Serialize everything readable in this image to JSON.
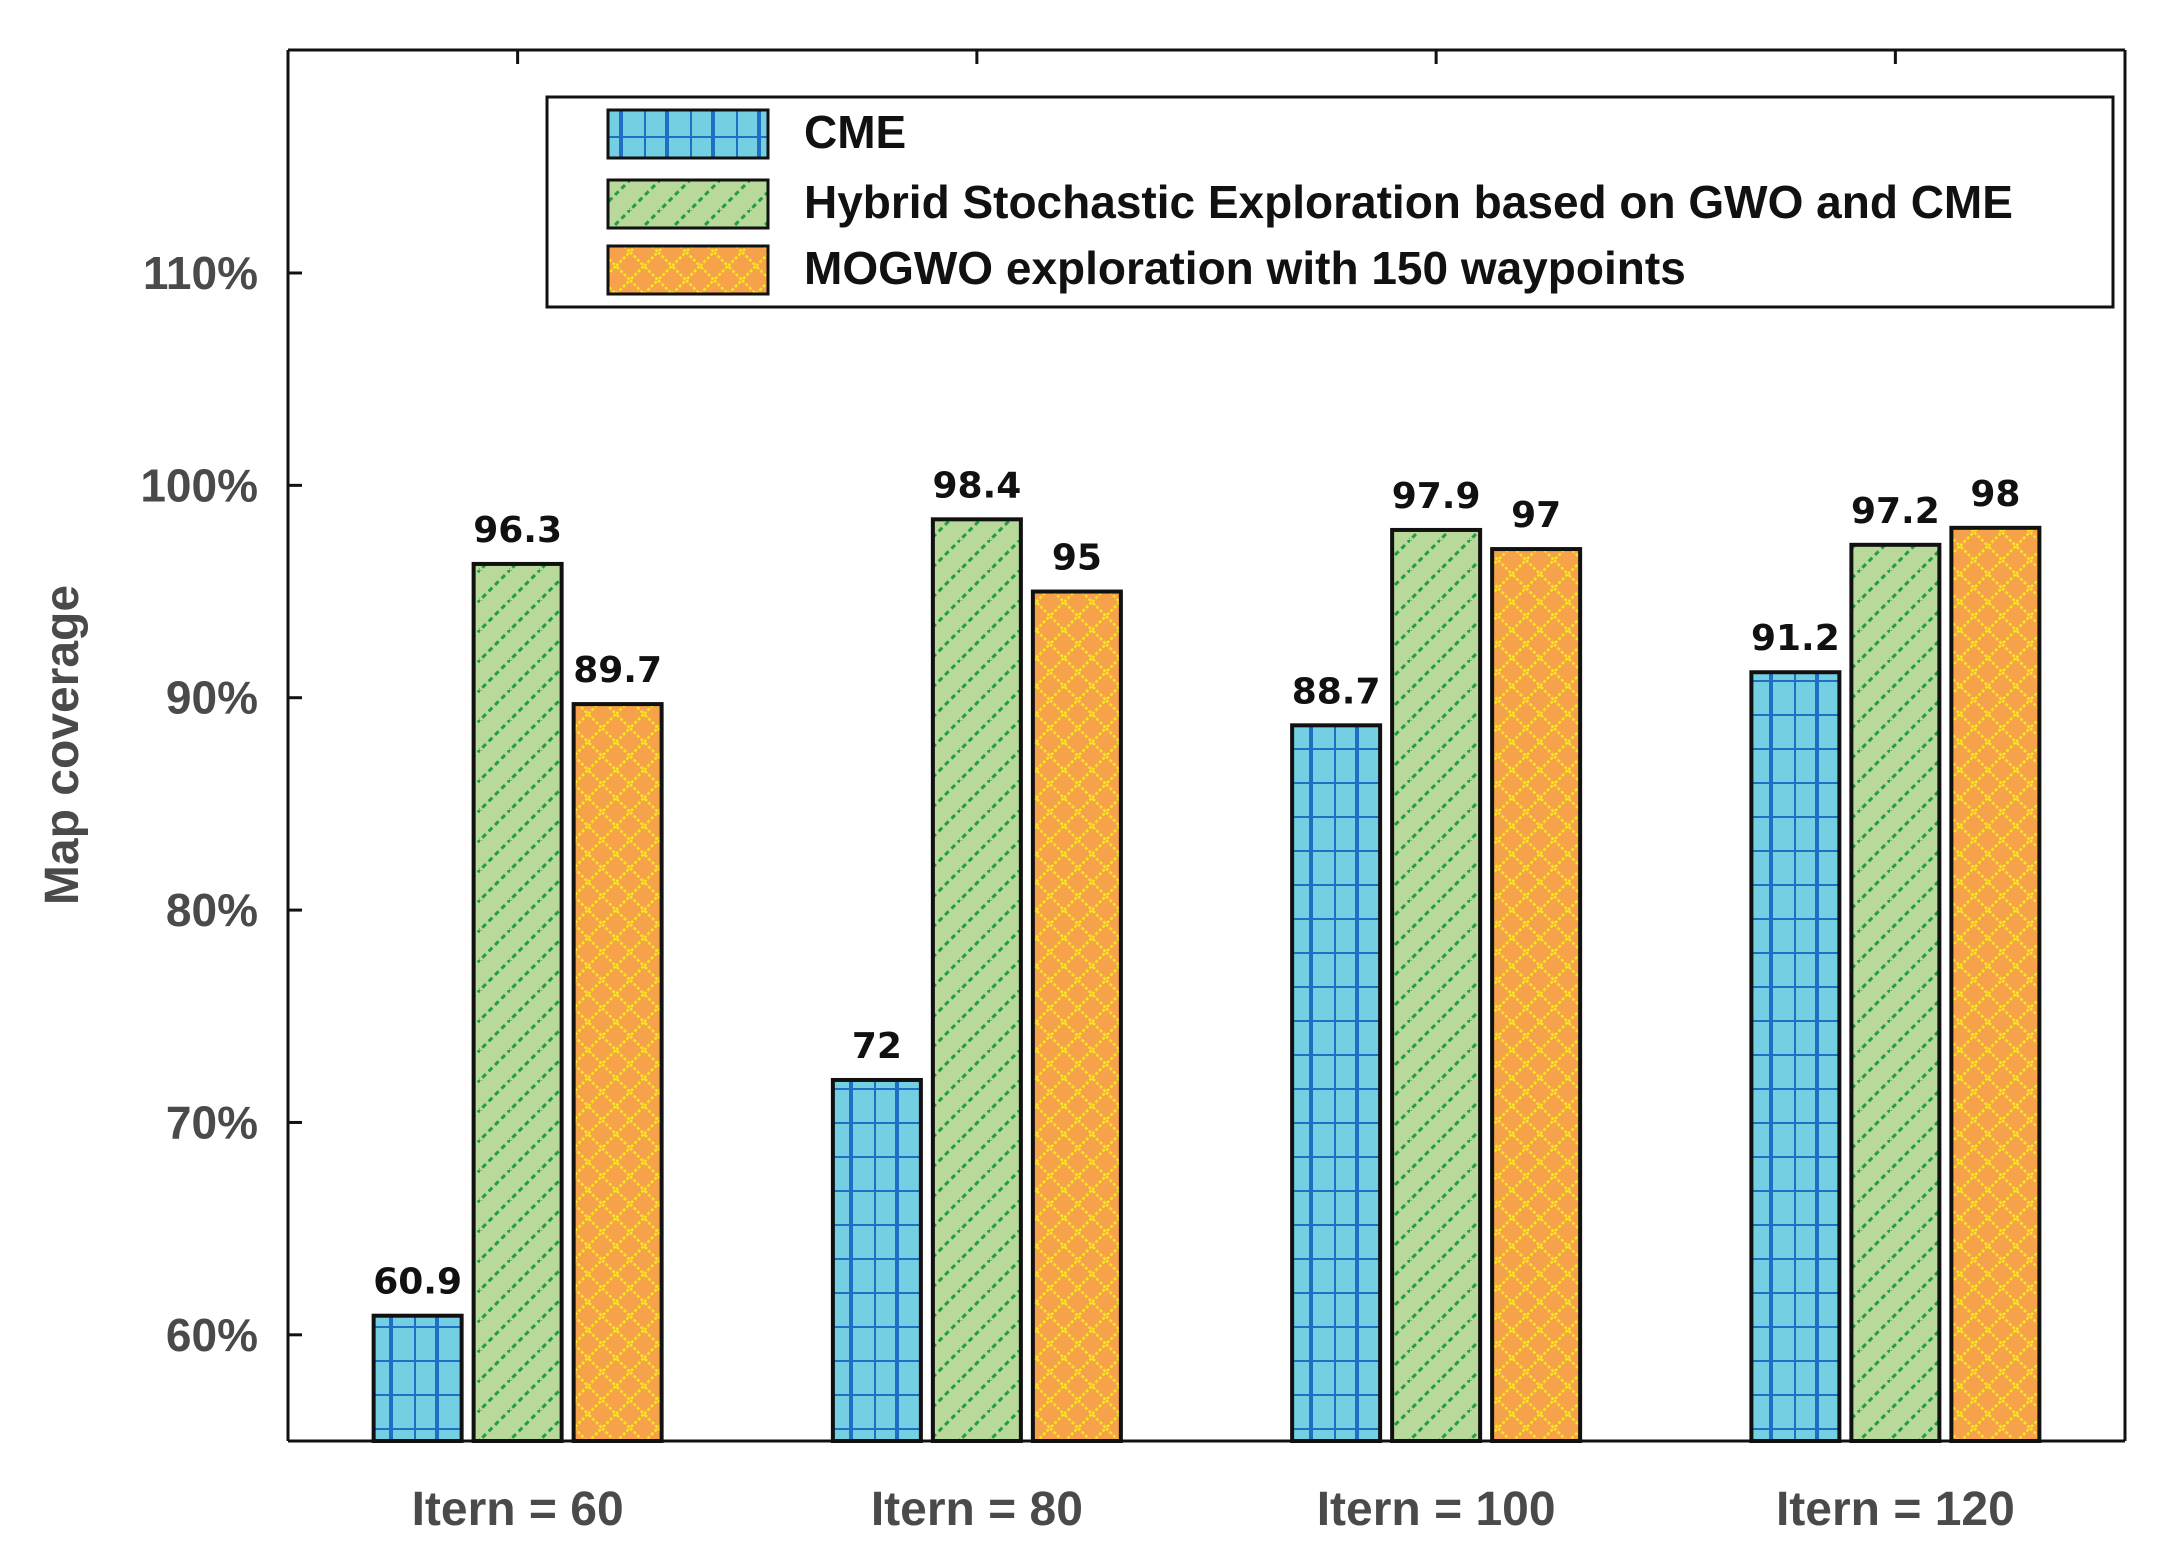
{
  "chart_data": {
    "type": "bar",
    "title": "",
    "xlabel": "",
    "ylabel": "Map coverage",
    "ylim": [
      55,
      120.5
    ],
    "yticks": [
      60,
      70,
      80,
      90,
      100,
      110
    ],
    "ytick_labels": [
      "60%",
      "70%",
      "80%",
      "90%",
      "100%",
      "110%"
    ],
    "categories": [
      "Itern = 60",
      "Itern = 80",
      "Itern = 100",
      "Itern = 120"
    ],
    "legend_position": "top-right",
    "series": [
      {
        "name": "CME",
        "values": [
          60.9,
          72,
          88.7,
          91.2
        ],
        "labels": [
          "60.9",
          "72",
          "88.7",
          "91.2"
        ],
        "color": "#74cfe3",
        "pattern_color": "#1f6fc4",
        "pattern": "grid"
      },
      {
        "name": "Hybrid Stochastic Exploration based on GWO and CME",
        "values": [
          96.3,
          98.4,
          97.9,
          97.2
        ],
        "labels": [
          "96.3",
          "98.4",
          "97.9",
          "97.2"
        ],
        "color": "#b8d99a",
        "pattern_color": "#1f9e4a",
        "pattern": "diagonal"
      },
      {
        "name": "MOGWO exploration with 150 waypoints",
        "values": [
          89.7,
          95,
          97,
          98
        ],
        "labels": [
          "89.7",
          "95",
          "97",
          "98"
        ],
        "color": "#f5a24b",
        "pattern_color": "#f7e81c",
        "pattern": "diamond"
      }
    ]
  }
}
